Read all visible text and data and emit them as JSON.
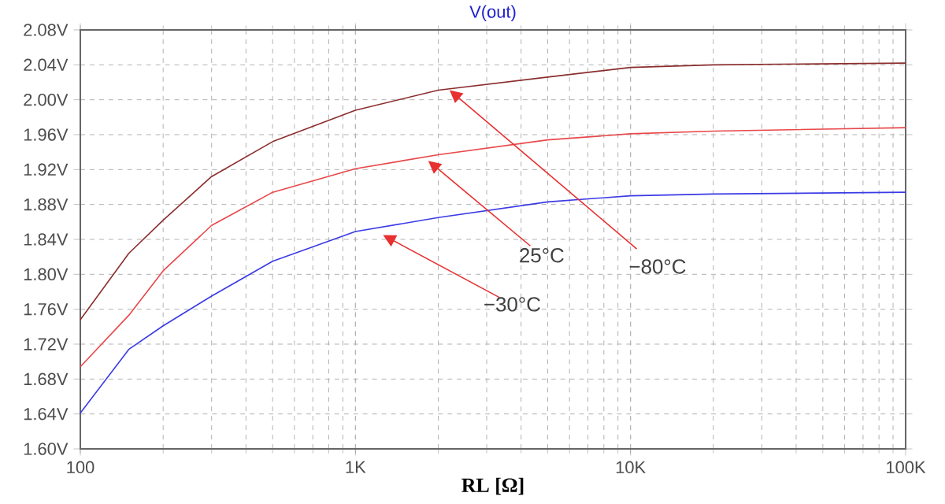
{
  "chart_data": {
    "type": "line",
    "title": "V(out)",
    "xlabel": "RL [Ω]",
    "x": [
      100,
      150,
      200,
      300,
      500,
      1000,
      2000,
      5000,
      10000,
      20000,
      100000
    ],
    "series": [
      {
        "color": "#8b2d2d",
        "values": [
          1.748,
          1.824,
          1.862,
          1.912,
          1.952,
          1.988,
          2.011,
          2.026,
          2.037,
          2.04,
          2.042
        ]
      },
      {
        "color": "#e8474a",
        "values": [
          1.694,
          1.753,
          1.804,
          1.856,
          1.894,
          1.921,
          1.937,
          1.954,
          1.961,
          1.964,
          1.968
        ]
      },
      {
        "color": "#3a3ae6",
        "values": [
          1.641,
          1.714,
          1.741,
          1.775,
          1.815,
          1.849,
          1.865,
          1.883,
          1.89,
          1.892,
          1.894
        ]
      }
    ],
    "xlim": [
      100,
      100000
    ],
    "xticks": [
      {
        "value": 100,
        "label": "100"
      },
      {
        "value": 1000,
        "label": "1K"
      },
      {
        "value": 10000,
        "label": "10K"
      },
      {
        "value": 100000,
        "label": "100K"
      }
    ],
    "ylim": [
      1.6,
      2.08
    ],
    "yticks": [
      {
        "value": 1.6,
        "label": "1.60V"
      },
      {
        "value": 1.64,
        "label": "1.64V"
      },
      {
        "value": 1.68,
        "label": "1.68V"
      },
      {
        "value": 1.72,
        "label": "1.72V"
      },
      {
        "value": 1.76,
        "label": "1.76V"
      },
      {
        "value": 1.8,
        "label": "1.80V"
      },
      {
        "value": 1.84,
        "label": "1.84V"
      },
      {
        "value": 1.88,
        "label": "1.88V"
      },
      {
        "value": 1.92,
        "label": "1.92V"
      },
      {
        "value": 1.96,
        "label": "1.96V"
      },
      {
        "value": 2.0,
        "label": "2.00V"
      },
      {
        "value": 2.04,
        "label": "2.04V"
      },
      {
        "value": 2.08,
        "label": "2.08V"
      }
    ],
    "log": "x",
    "grid": true,
    "line_style": "solid",
    "marker": "none",
    "annotations": [
      {
        "text": "−80°C",
        "x": 2200,
        "y": 2.011
      },
      {
        "text": "25°C",
        "x": 1840,
        "y": 1.93
      },
      {
        "text": "−30°C",
        "x": 1260,
        "y": 1.845
      }
    ]
  }
}
